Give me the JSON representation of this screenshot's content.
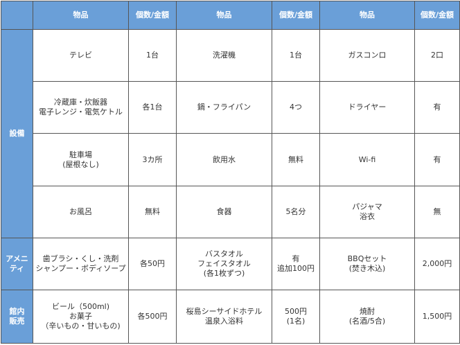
{
  "header": [
    "",
    "物品",
    "個数/金額",
    "物品",
    "個数/金額",
    "物品",
    "個数/金額"
  ],
  "sections": [
    {
      "category": "設備",
      "rows": [
        [
          "テレビ",
          "1台",
          "洗濯機",
          "1台",
          "ガスコンロ",
          "2口"
        ],
        [
          "冷蔵庫・炊飯器\n電子レンジ・電気ケトル",
          "各1台",
          "鍋・フライパン",
          "4つ",
          "ドライヤー",
          "有"
        ],
        [
          "駐車場\n(屋根なし)",
          "3カ所",
          "飲用水",
          "無料",
          "Wi-fi",
          "有"
        ],
        [
          "お風呂",
          "無料",
          "食器",
          "5名分",
          "パジャマ\n浴衣",
          "無"
        ]
      ]
    },
    {
      "category": "アメニ\nティ",
      "rows": [
        [
          "歯ブラシ・くし・洗剤\nシャンプー・ボディソープ",
          "各50円",
          "バスタオル\nフェイスタオル\n(各1枚ずつ)",
          "有\n追加100円",
          "BBQセット\n(焚き木込)",
          "2,000円"
        ]
      ]
    },
    {
      "category": "館内\n販売",
      "rows": [
        [
          "ビール（500ml)\nお菓子\n（辛いもの・甘いもの)",
          "各500円",
          "桜島シーサイドホテル\n温泉入浴料",
          "500円\n(1名)",
          "焼酎\n(名酒/5合)",
          "1,500円"
        ]
      ]
    }
  ]
}
